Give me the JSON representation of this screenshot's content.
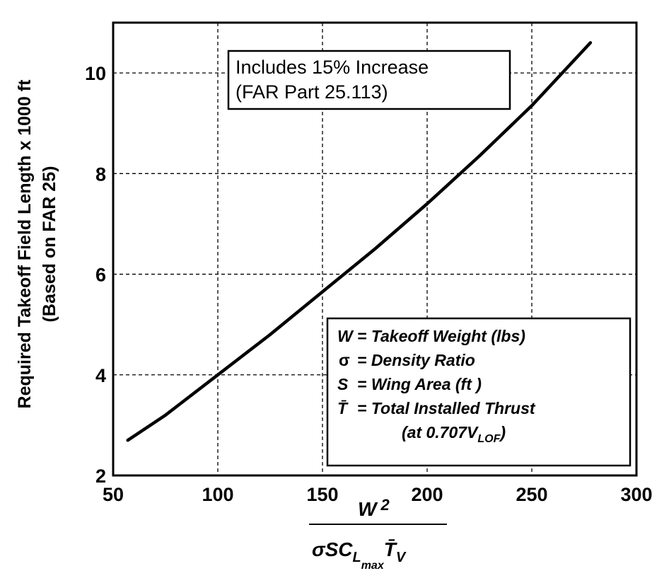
{
  "chart_data": {
    "type": "line",
    "xlabel_numerator": "W",
    "xlabel_numerator_exponent": "2",
    "xlabel_denominator": "σSC",
    "xlabel_denominator_sub": "L",
    "xlabel_denominator_subsub": "max",
    "xlabel_denominator_tail": "T̄",
    "xlabel_denominator_tail_sub": "V",
    "ylabel_line1": "Required Takeoff Field Length x 1000 ft",
    "ylabel_line2": "(Based on FAR 25)",
    "xlim": [
      50,
      300
    ],
    "ylim": [
      2,
      11
    ],
    "grid": true,
    "x_ticks": [
      50,
      100,
      150,
      200,
      250,
      300
    ],
    "y_ticks": [
      2,
      4,
      6,
      8,
      10
    ],
    "series": [
      {
        "x": [
          57,
          75,
          100,
          125,
          150,
          175,
          200,
          225,
          250,
          278
        ],
        "y": [
          2.7,
          3.2,
          4.0,
          4.8,
          5.65,
          6.5,
          7.4,
          8.35,
          9.35,
          10.6
        ]
      }
    ],
    "annotation": {
      "line1": "Includes 15% Increase",
      "line2": "(FAR Part 25.113)"
    },
    "legend": {
      "position": "bottom-right",
      "entries": [
        {
          "symbol": "W",
          "text": "=  Takeoff Weight (lbs)"
        },
        {
          "symbol": "σ",
          "text": "=  Density Ratio"
        },
        {
          "symbol": "S",
          "text": "=  Wing Area (ft )"
        },
        {
          "symbol": "T̄",
          "text": "=  Total Installed Thrust"
        },
        {
          "symbol": "",
          "text": "(at 0.707V",
          "sub": "LOF",
          "tail": ")"
        }
      ]
    }
  }
}
